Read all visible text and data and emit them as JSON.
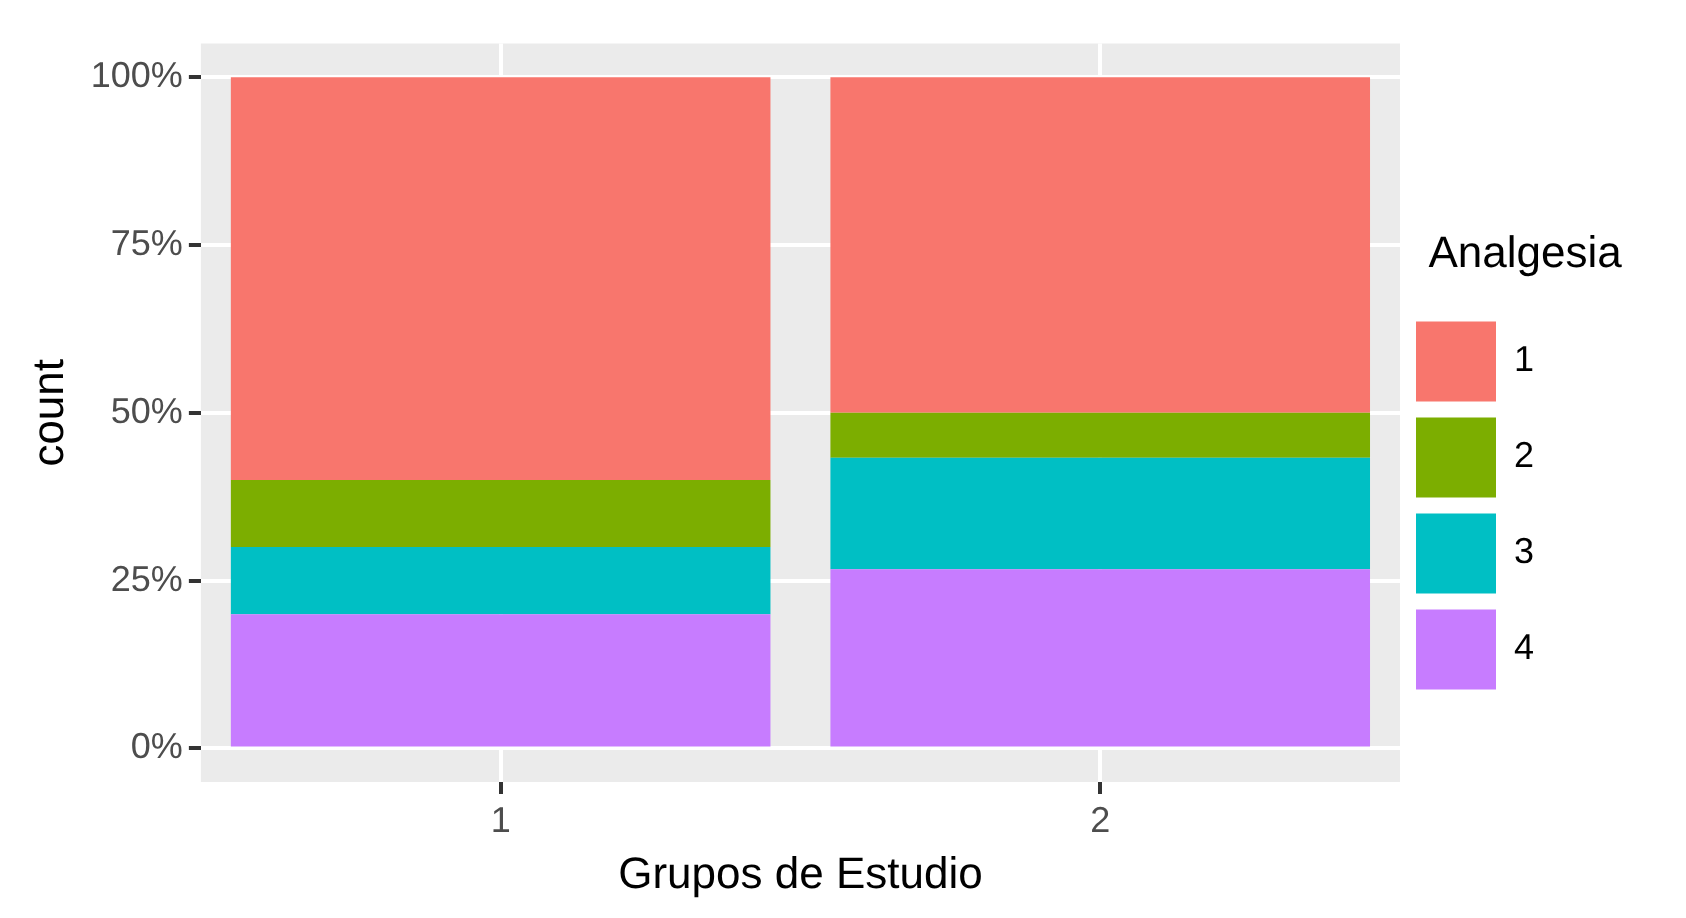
{
  "chart_data": {
    "type": "bar",
    "stacked": true,
    "xlabel": "Grupos de Estudio",
    "ylabel": "count",
    "legend_title": "Analgesia",
    "legend": "right",
    "grid": true,
    "categories": [
      "1",
      "2"
    ],
    "series": [
      {
        "name": "4",
        "color": "#c77cff",
        "values": [
          20,
          26.7
        ]
      },
      {
        "name": "3",
        "color": "#00bfc4",
        "values": [
          10,
          16.6
        ]
      },
      {
        "name": "2",
        "color": "#7cae00",
        "values": [
          10,
          6.7
        ]
      },
      {
        "name": "1",
        "color": "#f8766d",
        "values": [
          60,
          50
        ]
      }
    ],
    "ylim": [
      -5,
      105
    ],
    "yticks": [
      {
        "value": 0,
        "label": "0%"
      },
      {
        "value": 25,
        "label": "25%"
      },
      {
        "value": 50,
        "label": "50%"
      },
      {
        "value": 75,
        "label": "75%"
      },
      {
        "value": 100,
        "label": "100%"
      }
    ]
  }
}
